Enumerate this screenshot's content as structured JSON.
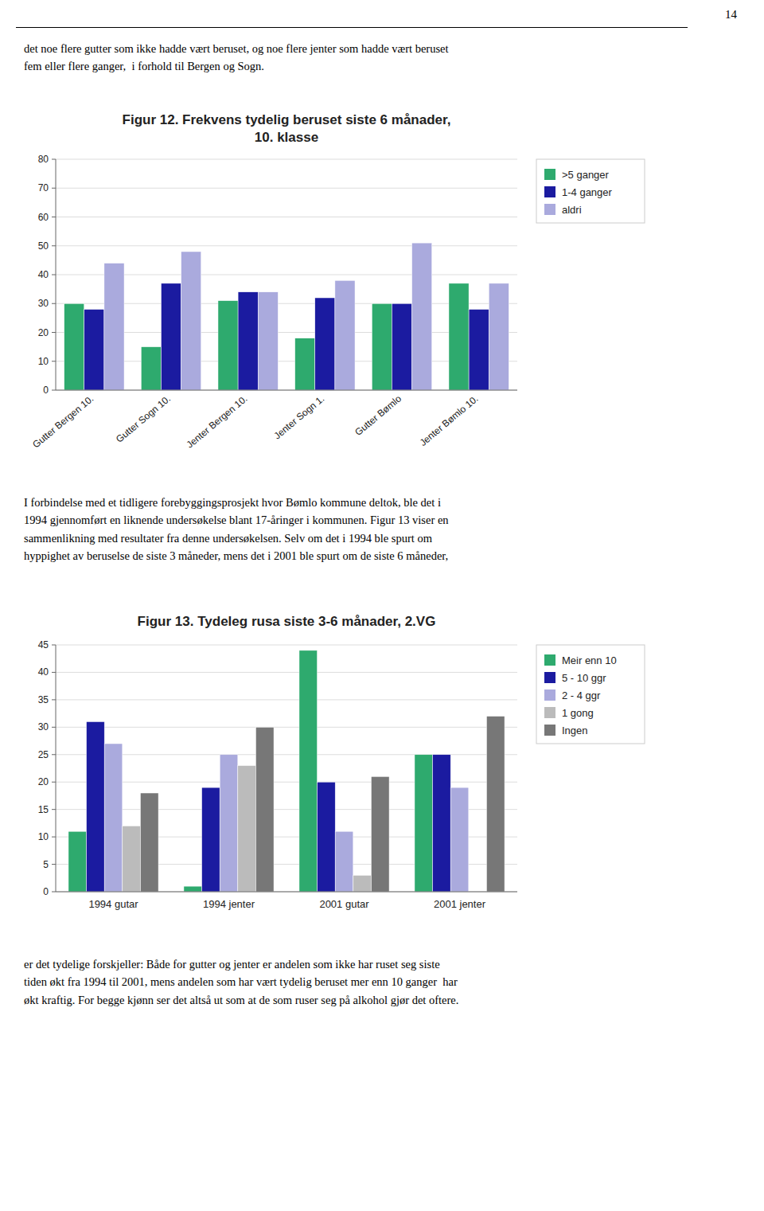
{
  "page_number": "14",
  "top_text": "det noe flere gutter som ikke hadde vært beruset, og noe flere jenter som hadde vært beruset\nfem eller flere ganger,  i forhold til Bergen og Sogn.",
  "chart_data": [
    {
      "type": "bar",
      "title": "Figur 12. Frekvens tydelig beruset siste 6 månader,\n10. klasse",
      "categories": [
        "Gutter Bergen 10.",
        "Gutter Sogn 10.",
        "Jenter Bergen 10.",
        "Jenter Sogn 1.",
        "Gutter Bømlo",
        "Jenter Bømlo 10."
      ],
      "series": [
        {
          "name": ">5 ganger",
          "color": "#2EAA6E",
          "values": [
            30,
            15,
            31,
            18,
            30,
            37
          ]
        },
        {
          "name": "1-4 ganger",
          "color": "#1B1BA0",
          "values": [
            28,
            37,
            34,
            32,
            30,
            28
          ]
        },
        {
          "name": "aldri",
          "color": "#AAAADD",
          "values": [
            44,
            48,
            34,
            38,
            51,
            37
          ]
        }
      ],
      "ylim": [
        0,
        80
      ],
      "yticks": [
        0,
        10,
        20,
        30,
        40,
        50,
        60,
        70,
        80
      ],
      "grid": true,
      "legend": "right"
    },
    {
      "type": "bar",
      "title": "Figur 13. Tydeleg rusa siste 3-6 månader, 2.VG",
      "categories": [
        "1994 gutar",
        "1994 jenter",
        "2001 gutar",
        "2001 jenter"
      ],
      "series": [
        {
          "name": "Meir enn 10",
          "color": "#2EAA6E",
          "values": [
            11,
            1,
            44,
            25
          ]
        },
        {
          "name": "5 - 10 ggr",
          "color": "#1B1BA0",
          "values": [
            31,
            19,
            20,
            25
          ]
        },
        {
          "name": "2 - 4 ggr",
          "color": "#AAAADD",
          "values": [
            27,
            25,
            11,
            19
          ]
        },
        {
          "name": "1 gong",
          "color": "#BBBBBB",
          "values": [
            12,
            23,
            3,
            0
          ]
        },
        {
          "name": "Ingen",
          "color": "#777777",
          "values": [
            18,
            30,
            21,
            32
          ]
        }
      ],
      "ylim": [
        0,
        45
      ],
      "yticks": [
        0,
        5,
        10,
        15,
        20,
        25,
        30,
        35,
        40,
        45
      ],
      "grid": true,
      "legend": "right"
    }
  ],
  "middle_text": "I forbindelse med et tidligere forebyggingsprosjekt hvor Bømlo kommune deltok, ble det i\n1994 gjennomført en liknende undersøkelse blant 17-åringer i kommunen. Figur 13 viser en\nsammenlikning med resultater fra denne undersøkelsen. Selv om det i 1994 ble spurt om\nhyppighet av beruselse de siste 3 måneder, mens det i 2001 ble spurt om de siste 6 måneder,",
  "bottom_text": "er det tydelige forskjeller: Både for gutter og jenter er andelen som ikke har ruset seg siste\ntiden økt fra 1994 til 2001, mens andelen som har vært tydelig beruset mer enn 10 ganger  har\nøkt kraftig. For begge kjønn ser det altså ut som at de som ruser seg på alkohol gjør det oftere."
}
